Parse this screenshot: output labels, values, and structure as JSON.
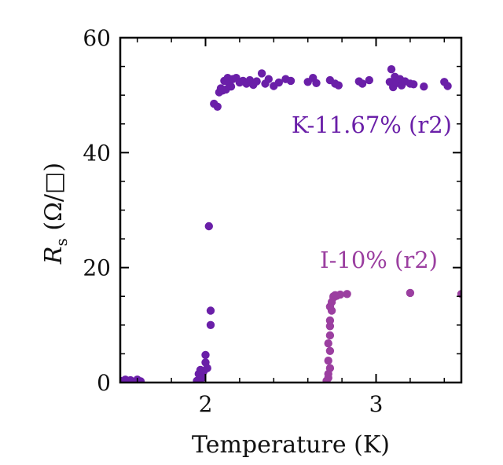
{
  "chart_data": {
    "type": "scatter",
    "xlabel": "Temperature (K)",
    "ylabel": "R_s (Ω/□)",
    "ylabel_main": "R",
    "ylabel_sub": "s",
    "ylabel_unit": " (Ω/□)",
    "xlim": [
      1.5,
      3.5
    ],
    "ylim": [
      0,
      60
    ],
    "xticks": [
      2,
      3
    ],
    "yticks": [
      0,
      20,
      40,
      60
    ],
    "x_tick_labels": [
      "2",
      "3"
    ],
    "y_tick_labels": [
      "0",
      "20",
      "40",
      "60"
    ],
    "series": [
      {
        "name": "K-11.67% (r2)",
        "color": "#6a1fa8",
        "points": [
          [
            1.5,
            0.3
          ],
          [
            1.53,
            0.5
          ],
          [
            1.56,
            0.4
          ],
          [
            1.6,
            0.5
          ],
          [
            1.62,
            0.2
          ],
          [
            1.57,
            0.1
          ],
          [
            1.95,
            0.3
          ],
          [
            1.96,
            1.5
          ],
          [
            1.97,
            2.2
          ],
          [
            1.98,
            0.8
          ],
          [
            1.99,
            2.0
          ],
          [
            2.0,
            3.5
          ],
          [
            2.0,
            4.8
          ],
          [
            2.01,
            2.5
          ],
          [
            2.03,
            10.0
          ],
          [
            2.03,
            12.5
          ],
          [
            2.02,
            27.2
          ],
          [
            2.05,
            48.5
          ],
          [
            2.07,
            48.0
          ],
          [
            2.08,
            50.5
          ],
          [
            2.09,
            51.2
          ],
          [
            2.1,
            50.8
          ],
          [
            2.11,
            52.5
          ],
          [
            2.12,
            51.0
          ],
          [
            2.13,
            53.0
          ],
          [
            2.14,
            52.0
          ],
          [
            2.15,
            51.5
          ],
          [
            2.16,
            52.8
          ],
          [
            2.18,
            53.0
          ],
          [
            2.2,
            52.2
          ],
          [
            2.22,
            52.5
          ],
          [
            2.24,
            52.0
          ],
          [
            2.26,
            52.6
          ],
          [
            2.28,
            51.8
          ],
          [
            2.3,
            52.4
          ],
          [
            2.33,
            53.8
          ],
          [
            2.35,
            52.0
          ],
          [
            2.37,
            52.8
          ],
          [
            2.4,
            51.6
          ],
          [
            2.43,
            52.2
          ],
          [
            2.47,
            52.8
          ],
          [
            2.5,
            52.5
          ],
          [
            2.6,
            52.3
          ],
          [
            2.63,
            53.0
          ],
          [
            2.65,
            52.1
          ],
          [
            2.73,
            52.6
          ],
          [
            2.76,
            52.0
          ],
          [
            2.78,
            51.7
          ],
          [
            2.9,
            52.4
          ],
          [
            2.92,
            52.0
          ],
          [
            2.96,
            52.6
          ],
          [
            3.08,
            52.3
          ],
          [
            3.09,
            54.5
          ],
          [
            3.1,
            51.4
          ],
          [
            3.11,
            53.2
          ],
          [
            3.12,
            52.1
          ],
          [
            3.14,
            52.8
          ],
          [
            3.15,
            51.7
          ],
          [
            3.17,
            52.4
          ],
          [
            3.2,
            52.0
          ],
          [
            3.22,
            51.9
          ],
          [
            3.28,
            51.5
          ],
          [
            3.4,
            52.3
          ],
          [
            3.42,
            51.6
          ]
        ]
      },
      {
        "name": "I-10% (r2)",
        "color": "#9b3fa0",
        "points": [
          [
            2.71,
            0.3
          ],
          [
            2.72,
            0.8
          ],
          [
            2.72,
            1.5
          ],
          [
            2.73,
            2.5
          ],
          [
            2.72,
            3.8
          ],
          [
            2.73,
            5.5
          ],
          [
            2.72,
            6.8
          ],
          [
            2.73,
            8.2
          ],
          [
            2.73,
            9.8
          ],
          [
            2.73,
            10.8
          ],
          [
            2.74,
            12.5
          ],
          [
            2.73,
            13.2
          ],
          [
            2.74,
            14.0
          ],
          [
            2.75,
            14.8
          ],
          [
            2.75,
            15.0
          ],
          [
            2.76,
            15.2
          ],
          [
            2.77,
            15.1
          ],
          [
            2.79,
            15.3
          ],
          [
            2.83,
            15.4
          ],
          [
            3.2,
            15.6
          ],
          [
            3.5,
            15.4
          ]
        ]
      }
    ],
    "labels": [
      {
        "text": "K-11.67% (r2)",
        "color": "#6a1fa8"
      },
      {
        "text": "I-10% (r2)",
        "color": "#9b3fa0"
      }
    ]
  }
}
